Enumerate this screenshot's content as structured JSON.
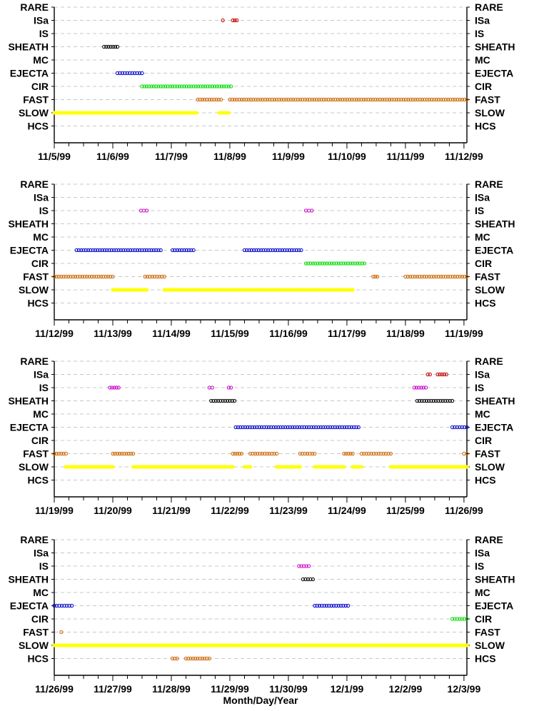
{
  "chart_data": [
    {
      "type": "scatter",
      "categories": [
        "RARE",
        "ISa",
        "IS",
        "SHEATH",
        "MC",
        "EJECTA",
        "CIR",
        "FAST",
        "SLOW",
        "HCS"
      ],
      "x_ticks": [
        "11/5/99",
        "11/6/99",
        "11/7/99",
        "11/8/99",
        "11/9/99",
        "11/10/99",
        "11/11/99",
        "11/12/99"
      ],
      "xlim": [
        0,
        7.05
      ],
      "colors": {
        "ISa": "#c00000",
        "IS": "#cc00cc",
        "SHEATH": "#000000",
        "EJECTA": "#0000cc",
        "CIR": "#00dd00",
        "FAST": "#cc6600",
        "SLOW": "#ffff00",
        "HCS": "#cc6600"
      },
      "series": [
        {
          "name": "ISa",
          "segments": [
            [
              2.88,
              2.9
            ],
            [
              3.05,
              3.12
            ]
          ]
        },
        {
          "name": "SHEATH",
          "segments": [
            [
              0.85,
              1.08
            ]
          ]
        },
        {
          "name": "EJECTA",
          "segments": [
            [
              1.08,
              1.5
            ]
          ]
        },
        {
          "name": "CIR",
          "segments": [
            [
              1.5,
              3.02
            ]
          ]
        },
        {
          "name": "FAST",
          "segments": [
            [
              2.45,
              2.85
            ],
            [
              3.0,
              7.05
            ]
          ]
        },
        {
          "name": "SLOW",
          "segments": [
            [
              0.0,
              2.43
            ],
            [
              2.82,
              2.98
            ]
          ]
        }
      ]
    },
    {
      "type": "scatter",
      "categories": [
        "RARE",
        "ISa",
        "IS",
        "SHEATH",
        "MC",
        "EJECTA",
        "CIR",
        "FAST",
        "SLOW",
        "HCS"
      ],
      "x_ticks": [
        "11/12/99",
        "11/13/99",
        "11/14/99",
        "11/15/99",
        "11/16/99",
        "11/17/99",
        "11/18/99",
        "11/19/99"
      ],
      "xlim": [
        0,
        7.05
      ],
      "colors": {
        "ISa": "#c00000",
        "IS": "#cc00cc",
        "SHEATH": "#000000",
        "EJECTA": "#0000cc",
        "CIR": "#00dd00",
        "FAST": "#cc6600",
        "SLOW": "#ffff00",
        "HCS": "#cc6600"
      },
      "series": [
        {
          "name": "IS",
          "segments": [
            [
              1.48,
              1.58
            ],
            [
              4.3,
              4.4
            ]
          ]
        },
        {
          "name": "EJECTA",
          "segments": [
            [
              0.38,
              1.82
            ],
            [
              2.02,
              2.38
            ],
            [
              3.25,
              4.22
            ]
          ]
        },
        {
          "name": "CIR",
          "segments": [
            [
              4.3,
              5.3
            ]
          ]
        },
        {
          "name": "FAST",
          "segments": [
            [
              0.0,
              1.0
            ],
            [
              1.55,
              1.88
            ],
            [
              5.45,
              5.52
            ],
            [
              6.0,
              7.05
            ]
          ]
        },
        {
          "name": "SLOW",
          "segments": [
            [
              1.0,
              1.58
            ],
            [
              1.88,
              5.1
            ]
          ]
        }
      ]
    },
    {
      "type": "scatter",
      "categories": [
        "RARE",
        "ISa",
        "IS",
        "SHEATH",
        "MC",
        "EJECTA",
        "CIR",
        "FAST",
        "SLOW",
        "HCS"
      ],
      "x_ticks": [
        "11/19/99",
        "11/20/99",
        "11/21/99",
        "11/22/99",
        "11/23/99",
        "11/24/99",
        "11/25/99",
        "11/26/99"
      ],
      "xlim": [
        0,
        7.05
      ],
      "colors": {
        "ISa": "#c00000",
        "IS": "#cc00cc",
        "SHEATH": "#000000",
        "EJECTA": "#0000cc",
        "CIR": "#00dd00",
        "FAST": "#cc6600",
        "SLOW": "#ffff00",
        "HCS": "#cc6600"
      },
      "series": [
        {
          "name": "ISa",
          "segments": [
            [
              6.38,
              6.42
            ],
            [
              6.55,
              6.7
            ]
          ]
        },
        {
          "name": "IS",
          "segments": [
            [
              0.95,
              1.1
            ],
            [
              2.65,
              2.7
            ],
            [
              2.98,
              3.02
            ],
            [
              6.15,
              6.35
            ]
          ]
        },
        {
          "name": "SHEATH",
          "segments": [
            [
              2.68,
              3.08
            ],
            [
              6.2,
              6.8
            ]
          ]
        },
        {
          "name": "EJECTA",
          "segments": [
            [
              3.1,
              5.2
            ],
            [
              6.8,
              7.05
            ]
          ]
        },
        {
          "name": "FAST",
          "segments": [
            [
              0.0,
              0.2
            ],
            [
              1.0,
              1.35
            ],
            [
              3.05,
              3.2
            ],
            [
              3.35,
              3.8
            ],
            [
              4.2,
              4.45
            ],
            [
              4.95,
              5.1
            ],
            [
              5.25,
              5.75
            ],
            [
              7.0,
              7.05
            ]
          ]
        },
        {
          "name": "SLOW",
          "segments": [
            [
              0.2,
              1.0
            ],
            [
              1.35,
              3.05
            ],
            [
              3.25,
              3.35
            ],
            [
              3.8,
              4.2
            ],
            [
              4.45,
              4.95
            ],
            [
              5.1,
              5.25
            ],
            [
              5.75,
              7.05
            ]
          ]
        }
      ]
    },
    {
      "type": "scatter",
      "categories": [
        "RARE",
        "ISa",
        "IS",
        "SHEATH",
        "MC",
        "EJECTA",
        "CIR",
        "FAST",
        "SLOW",
        "HCS"
      ],
      "x_ticks": [
        "11/26/99",
        "11/27/99",
        "11/28/99",
        "11/29/99",
        "11/30/99",
        "12/1/99",
        "12/2/99",
        "12/3/99"
      ],
      "xlim": [
        0,
        7.05
      ],
      "xlabel": "Month/Day/Year",
      "colors": {
        "ISa": "#c00000",
        "IS": "#cc00cc",
        "SHEATH": "#000000",
        "EJECTA": "#0000cc",
        "CIR": "#00dd00",
        "FAST": "#cc6600",
        "SLOW": "#ffff00",
        "HCS": "#cc6600"
      },
      "series": [
        {
          "name": "IS",
          "segments": [
            [
              4.18,
              4.35
            ]
          ]
        },
        {
          "name": "SHEATH",
          "segments": [
            [
              4.25,
              4.42
            ]
          ]
        },
        {
          "name": "EJECTA",
          "segments": [
            [
              0.0,
              0.3
            ],
            [
              4.45,
              5.02
            ]
          ]
        },
        {
          "name": "CIR",
          "segments": [
            [
              6.8,
              7.05
            ]
          ]
        },
        {
          "name": "FAST",
          "segments": [
            [
              0.12,
              0.14
            ]
          ]
        },
        {
          "name": "SLOW",
          "segments": [
            [
              0.0,
              7.05
            ]
          ]
        },
        {
          "name": "HCS",
          "segments": [
            [
              2.02,
              2.1
            ],
            [
              2.25,
              2.65
            ]
          ]
        }
      ]
    }
  ]
}
